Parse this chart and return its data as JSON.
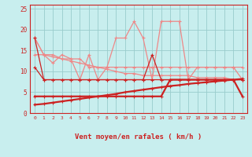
{
  "x": [
    0,
    1,
    2,
    3,
    4,
    5,
    6,
    7,
    8,
    9,
    10,
    11,
    12,
    13,
    14,
    15,
    16,
    17,
    18,
    19,
    20,
    21,
    22,
    23
  ],
  "light_pink_spiky": [
    18,
    14,
    12,
    14,
    13,
    8,
    14,
    8,
    11,
    18,
    18,
    22,
    18,
    8,
    22,
    22,
    22,
    8,
    11,
    11,
    11,
    11,
    11,
    8
  ],
  "light_pink_diagonal": [
    18,
    14,
    14,
    13,
    13,
    13,
    11,
    11,
    11,
    11,
    11,
    11,
    11,
    11,
    11,
    11,
    11,
    11,
    11,
    11,
    11,
    11,
    11,
    11
  ],
  "dark_red_flat_upper": [
    18,
    8,
    8,
    8,
    8,
    8,
    8,
    8,
    8,
    8,
    8,
    8,
    8,
    8,
    8,
    8,
    8,
    8,
    8,
    8,
    8,
    8,
    8,
    8
  ],
  "dark_red_spike": [
    11,
    8,
    8,
    8,
    8,
    8,
    8,
    8,
    8,
    8,
    8,
    8,
    8,
    14,
    8,
    8,
    8,
    8,
    8,
    8,
    8,
    8,
    8,
    8
  ],
  "dark_red_low_flat": [
    4,
    4,
    4,
    4,
    4,
    4,
    4,
    4,
    4,
    4,
    4,
    4,
    4,
    4,
    4,
    8,
    8,
    8,
    8,
    8,
    8,
    8,
    8,
    4
  ],
  "dark_red_rising": [
    2,
    2.2,
    2.5,
    2.8,
    3.1,
    3.4,
    3.7,
    4.0,
    4.3,
    4.6,
    5.0,
    5.3,
    5.6,
    5.9,
    6.2,
    6.5,
    6.7,
    7.0,
    7.2,
    7.4,
    7.6,
    7.8,
    8.0,
    8.2
  ],
  "light_pink_diagonal2": [
    14,
    14,
    13.5,
    13,
    12.5,
    12,
    11.5,
    11,
    10.5,
    10,
    9.5,
    9.5,
    9,
    9,
    9,
    9,
    9,
    9,
    8.5,
    8.5,
    8.5,
    8.5,
    8,
    8
  ],
  "background_color": "#c8eeee",
  "grid_color": "#99cccc",
  "dark_red": "#cc2222",
  "light_pink": "#ee8888",
  "xlabel": "Vent moyen/en rafales ( km/h )",
  "ylim": [
    0,
    26
  ],
  "yticks": [
    0,
    5,
    10,
    15,
    20,
    25
  ],
  "xlim": [
    -0.5,
    23.5
  ],
  "tick_color": "#cc2222",
  "label_color": "#cc2222"
}
